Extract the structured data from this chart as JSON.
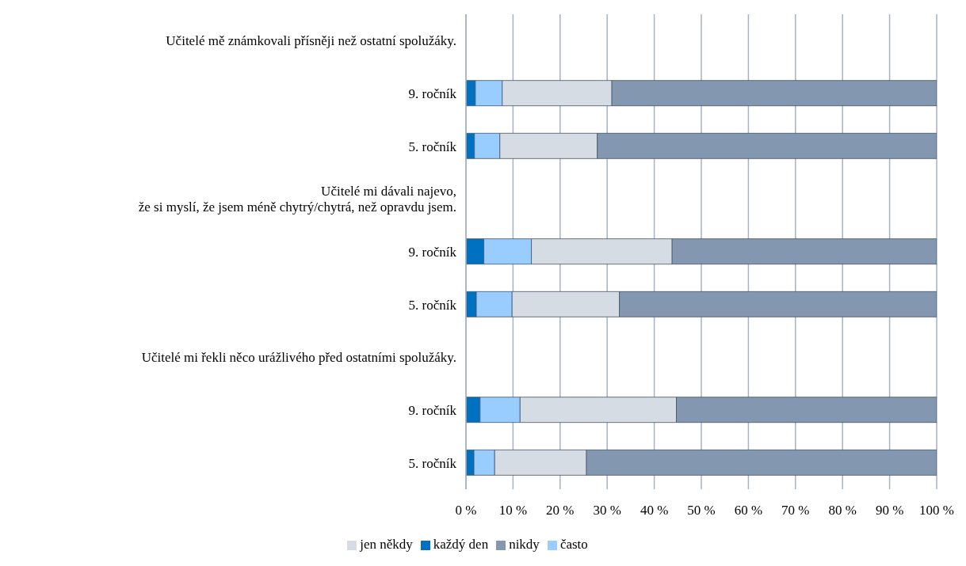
{
  "chart_data": {
    "type": "bar",
    "orientation": "horizontal",
    "stacked": true,
    "categories": [
      "Učitelé mě známkovali přísněji než ostatní spolužáky.",
      "9. ročník",
      "5. ročník",
      "Učitelé mi dávali najevo,\nže si myslí, že jsem méně chytrý/chytrá, než opravdu jsem.",
      "9. ročník",
      "5. ročník",
      "Učitelé mi řekli něco urážlivého před ostatními spolužáky.",
      "9. ročník",
      "5. ročník"
    ],
    "series": [
      {
        "name": "každý den",
        "color": "#0070c0",
        "values": [
          null,
          2.0,
          1.8,
          null,
          3.8,
          2.2,
          null,
          3.0,
          1.7
        ]
      },
      {
        "name": "často",
        "color": "#99ccff",
        "values": [
          null,
          5.7,
          5.4,
          null,
          10.1,
          7.6,
          null,
          8.5,
          4.4
        ]
      },
      {
        "name": "jen někdy",
        "color": "#d6dce4",
        "values": [
          null,
          23.3,
          20.7,
          null,
          29.9,
          22.8,
          null,
          33.2,
          19.5
        ]
      },
      {
        "name": "nikdy",
        "color": "#8497b0",
        "values": [
          null,
          69.0,
          72.1,
          null,
          56.2,
          67.4,
          null,
          55.3,
          74.4
        ]
      }
    ],
    "xlim": [
      0,
      100
    ],
    "xticks": [
      {
        "value": 0,
        "label": "0 %"
      },
      {
        "value": 10,
        "label": "10 %"
      },
      {
        "value": 20,
        "label": "20 %"
      },
      {
        "value": 30,
        "label": "30 %"
      },
      {
        "value": 40,
        "label": "40 %"
      },
      {
        "value": 50,
        "label": "50 %"
      },
      {
        "value": 60,
        "label": "60 %"
      },
      {
        "value": 70,
        "label": "70 %"
      },
      {
        "value": 80,
        "label": "80 %"
      },
      {
        "value": 90,
        "label": "90 %"
      },
      {
        "value": 100,
        "label": "100 %"
      }
    ],
    "grid": "x",
    "legend": "bottom"
  }
}
